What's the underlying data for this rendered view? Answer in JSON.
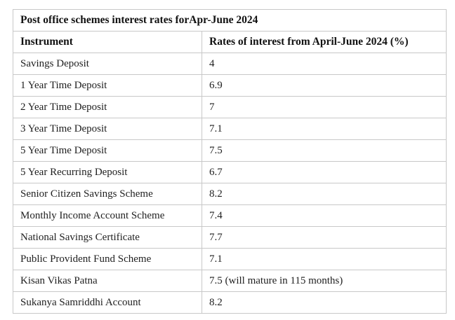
{
  "table": {
    "title": "Post office schemes interest rates forApr-June 2024",
    "columns": {
      "instrument": "Instrument",
      "rates": "Rates of interest from April-June 2024 (%)"
    },
    "rows": [
      {
        "instrument": "Savings Deposit",
        "rate": "4"
      },
      {
        "instrument": "1 Year Time Deposit",
        "rate": "6.9"
      },
      {
        "instrument": "2 Year Time Deposit",
        "rate": "7"
      },
      {
        "instrument": "3 Year Time Deposit",
        "rate": "7.1"
      },
      {
        "instrument": "5 Year Time Deposit",
        "rate": "7.5"
      },
      {
        "instrument": "5 Year Recurring Deposit",
        "rate": "6.7"
      },
      {
        "instrument": "Senior Citizen Savings Scheme",
        "rate": "8.2"
      },
      {
        "instrument": "Monthly Income Account Scheme",
        "rate": "7.4"
      },
      {
        "instrument": "National Savings Certificate",
        "rate": "7.7"
      },
      {
        "instrument": "Public Provident Fund Scheme",
        "rate": "7.1"
      },
      {
        "instrument": "Kisan Vikas Patna",
        "rate": "7.5 (will mature in 115 months)"
      },
      {
        "instrument": "Sukanya Samriddhi Account",
        "rate": "8.2"
      }
    ],
    "colors": {
      "border": "#c8c8c8",
      "text": "#1f1f1f",
      "background": "#ffffff"
    }
  }
}
